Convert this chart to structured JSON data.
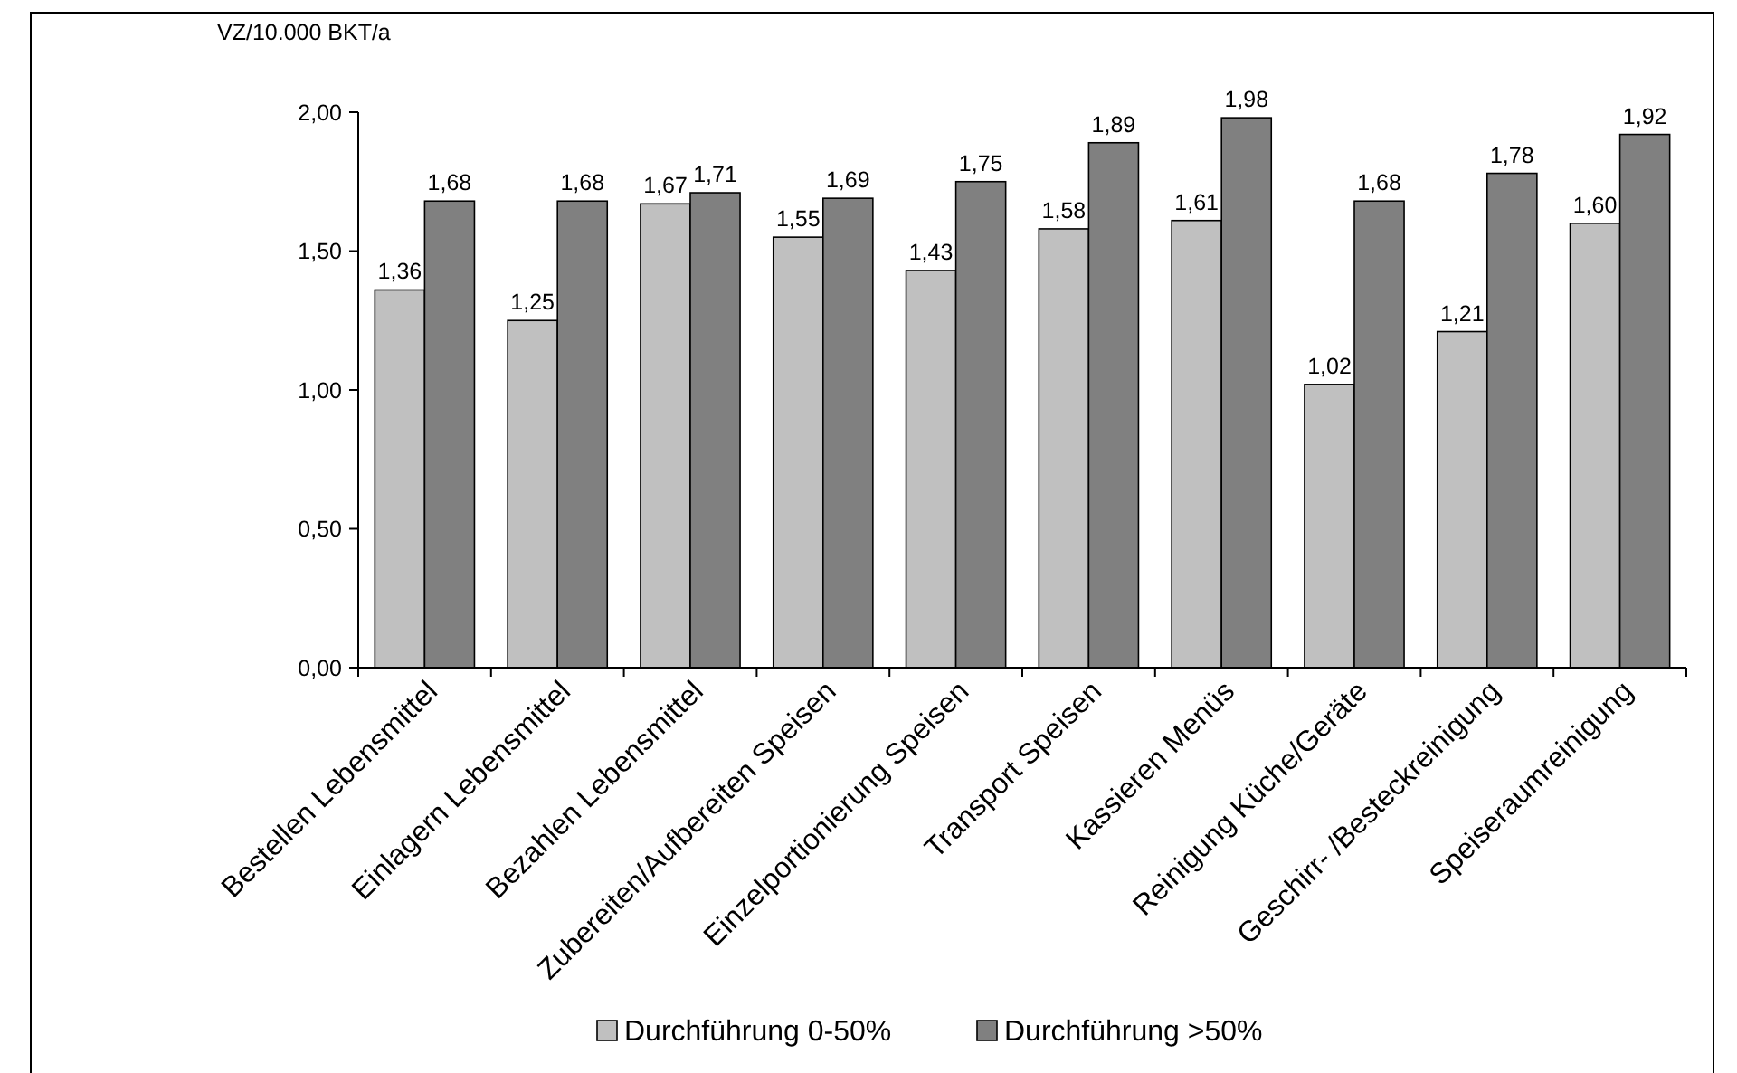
{
  "chart_data": {
    "type": "bar",
    "ylabel": "VZ/10.000 BKT/a",
    "categories": [
      "Bestellen Lebensmittel",
      "Einlagern Lebensmittel",
      "Bezahlen Lebensmittel",
      "Zubereiten/Aufbereiten Speisen",
      "Einzelportionierung Speisen",
      "Transport Speisen",
      "Kassieren Menüs",
      "Reinigung Küche/Geräte",
      "Geschirr- /Besteckreinigung",
      "Speiseraumreinigung"
    ],
    "series": [
      {
        "name": "Durchführung 0-50%",
        "color": "#c0c0c0",
        "values": [
          1.36,
          1.25,
          1.67,
          1.55,
          1.43,
          1.58,
          1.61,
          1.02,
          1.21,
          1.6
        ],
        "value_labels": [
          "1,36",
          "1,25",
          "1,67",
          "1,55",
          "1,43",
          "1,58",
          "1,61",
          "1,02",
          "1,21",
          "1,60"
        ]
      },
      {
        "name": "Durchführung >50%",
        "color": "#808080",
        "values": [
          1.68,
          1.68,
          1.71,
          1.69,
          1.75,
          1.89,
          1.98,
          1.68,
          1.78,
          1.92
        ],
        "value_labels": [
          "1,68",
          "1,68",
          "1,71",
          "1,69",
          "1,75",
          "1,89",
          "1,98",
          "1,68",
          "1,78",
          "1,92"
        ]
      }
    ],
    "ylim": [
      0,
      2
    ],
    "yticks": [
      {
        "value": 0,
        "label": "0,00"
      },
      {
        "value": 0.5,
        "label": "0,50"
      },
      {
        "value": 1,
        "label": "1,00"
      },
      {
        "value": 1.5,
        "label": "1,50"
      },
      {
        "value": 2,
        "label": "2,00"
      }
    ],
    "grid": false,
    "legend": "bottom"
  }
}
